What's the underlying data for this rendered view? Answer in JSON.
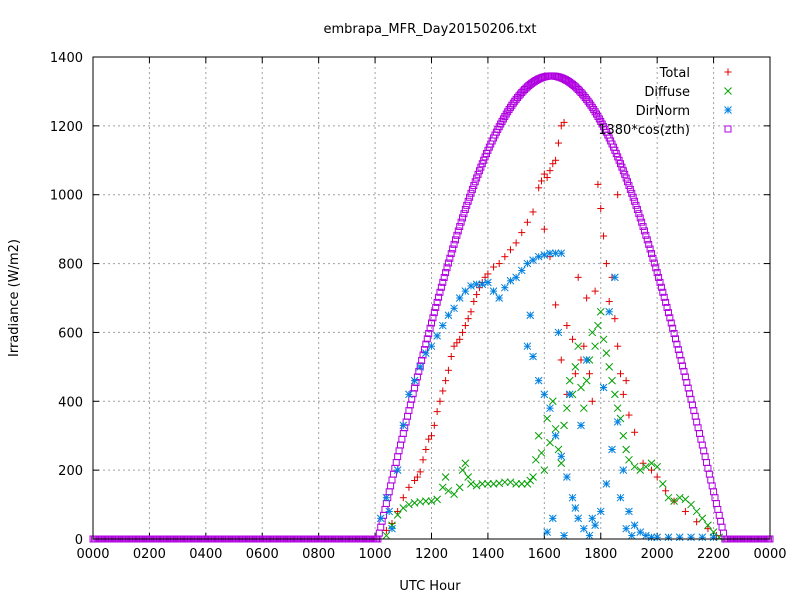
{
  "chart_data": {
    "type": "scatter",
    "title": "embrapa_MFR_Day20150206.txt",
    "xlabel": "UTC Hour",
    "ylabel": "Irradiance (W/m2)",
    "xlim": [
      0,
      24
    ],
    "ylim": [
      0,
      1400
    ],
    "grid": true,
    "legend_position": "top-right",
    "x_tick_labels": [
      "0000",
      "0200",
      "0400",
      "0600",
      "0800",
      "1000",
      "1200",
      "1400",
      "1600",
      "1800",
      "2000",
      "2200",
      "0000"
    ],
    "y_ticks": [
      0,
      200,
      400,
      600,
      800,
      1000,
      1200,
      1400
    ],
    "series": [
      {
        "name": "Total",
        "marker": "plus",
        "color": "#e00000",
        "points": [
          [
            10.4,
            25
          ],
          [
            10.6,
            45
          ],
          [
            10.8,
            80
          ],
          [
            11.0,
            120
          ],
          [
            11.2,
            150
          ],
          [
            11.4,
            170
          ],
          [
            11.5,
            180
          ],
          [
            11.6,
            195
          ],
          [
            11.7,
            230
          ],
          [
            11.8,
            260
          ],
          [
            11.9,
            290
          ],
          [
            12.0,
            300
          ],
          [
            12.1,
            330
          ],
          [
            12.2,
            370
          ],
          [
            12.3,
            400
          ],
          [
            12.4,
            430
          ],
          [
            12.5,
            460
          ],
          [
            12.6,
            490
          ],
          [
            12.7,
            530
          ],
          [
            12.8,
            560
          ],
          [
            12.9,
            570
          ],
          [
            13.0,
            580
          ],
          [
            13.1,
            600
          ],
          [
            13.2,
            620
          ],
          [
            13.3,
            640
          ],
          [
            13.4,
            660
          ],
          [
            13.5,
            690
          ],
          [
            13.6,
            710
          ],
          [
            13.7,
            730
          ],
          [
            13.8,
            745
          ],
          [
            13.9,
            760
          ],
          [
            14.0,
            770
          ],
          [
            14.2,
            790
          ],
          [
            14.4,
            800
          ],
          [
            14.6,
            820
          ],
          [
            14.8,
            840
          ],
          [
            15.0,
            860
          ],
          [
            15.2,
            890
          ],
          [
            15.4,
            920
          ],
          [
            15.6,
            950
          ],
          [
            15.8,
            1020
          ],
          [
            15.9,
            1040
          ],
          [
            16.0,
            1060
          ],
          [
            16.1,
            1050
          ],
          [
            16.2,
            1070
          ],
          [
            16.3,
            1090
          ],
          [
            16.4,
            1100
          ],
          [
            16.5,
            1150
          ],
          [
            16.6,
            1200
          ],
          [
            16.7,
            1210
          ],
          [
            16.0,
            900
          ],
          [
            16.2,
            820
          ],
          [
            16.4,
            680
          ],
          [
            16.6,
            520
          ],
          [
            16.8,
            620
          ],
          [
            17.0,
            580
          ],
          [
            17.2,
            760
          ],
          [
            17.4,
            560
          ],
          [
            17.5,
            700
          ],
          [
            17.6,
            480
          ],
          [
            17.7,
            400
          ],
          [
            17.8,
            720
          ],
          [
            17.9,
            1030
          ],
          [
            18.0,
            960
          ],
          [
            18.1,
            880
          ],
          [
            18.2,
            800
          ],
          [
            18.3,
            690
          ],
          [
            18.4,
            760
          ],
          [
            18.5,
            640
          ],
          [
            18.6,
            560
          ],
          [
            18.7,
            480
          ],
          [
            18.8,
            420
          ],
          [
            19.0,
            360
          ],
          [
            19.2,
            310
          ],
          [
            19.5,
            220
          ],
          [
            19.8,
            200
          ],
          [
            20.0,
            180
          ],
          [
            20.3,
            140
          ],
          [
            20.6,
            110
          ],
          [
            21.0,
            80
          ],
          [
            21.4,
            50
          ],
          [
            21.8,
            30
          ],
          [
            22.1,
            10
          ],
          [
            16.8,
            420
          ],
          [
            17.1,
            480
          ],
          [
            17.3,
            520
          ],
          [
            18.6,
            1000
          ],
          [
            18.9,
            460
          ]
        ]
      },
      {
        "name": "Diffuse",
        "marker": "cross",
        "color": "#00a000",
        "points": [
          [
            10.4,
            10
          ],
          [
            10.6,
            40
          ],
          [
            10.8,
            70
          ],
          [
            11.0,
            90
          ],
          [
            11.2,
            100
          ],
          [
            11.4,
            105
          ],
          [
            11.6,
            108
          ],
          [
            11.8,
            110
          ],
          [
            12.0,
            110
          ],
          [
            12.2,
            115
          ],
          [
            12.4,
            150
          ],
          [
            12.5,
            180
          ],
          [
            12.6,
            140
          ],
          [
            12.8,
            130
          ],
          [
            13.0,
            150
          ],
          [
            13.1,
            200
          ],
          [
            13.2,
            220
          ],
          [
            13.3,
            180
          ],
          [
            13.4,
            160
          ],
          [
            13.6,
            155
          ],
          [
            13.8,
            160
          ],
          [
            14.0,
            160
          ],
          [
            14.2,
            160
          ],
          [
            14.4,
            162
          ],
          [
            14.6,
            165
          ],
          [
            14.8,
            165
          ],
          [
            15.0,
            160
          ],
          [
            15.2,
            160
          ],
          [
            15.4,
            160
          ],
          [
            15.5,
            170
          ],
          [
            15.6,
            180
          ],
          [
            15.7,
            230
          ],
          [
            15.8,
            300
          ],
          [
            15.9,
            250
          ],
          [
            16.0,
            200
          ],
          [
            16.1,
            350
          ],
          [
            16.2,
            280
          ],
          [
            16.3,
            400
          ],
          [
            16.4,
            320
          ],
          [
            16.5,
            260
          ],
          [
            16.6,
            220
          ],
          [
            16.7,
            330
          ],
          [
            16.8,
            380
          ],
          [
            16.9,
            460
          ],
          [
            17.0,
            420
          ],
          [
            17.1,
            500
          ],
          [
            17.2,
            560
          ],
          [
            17.3,
            440
          ],
          [
            17.4,
            380
          ],
          [
            17.5,
            460
          ],
          [
            17.6,
            520
          ],
          [
            17.7,
            600
          ],
          [
            17.8,
            560
          ],
          [
            17.9,
            620
          ],
          [
            18.0,
            660
          ],
          [
            18.1,
            580
          ],
          [
            18.2,
            540
          ],
          [
            18.3,
            500
          ],
          [
            18.4,
            460
          ],
          [
            18.5,
            420
          ],
          [
            18.6,
            380
          ],
          [
            18.7,
            350
          ],
          [
            18.8,
            300
          ],
          [
            18.9,
            260
          ],
          [
            19.0,
            230
          ],
          [
            19.2,
            210
          ],
          [
            19.4,
            200
          ],
          [
            19.6,
            210
          ],
          [
            19.8,
            220
          ],
          [
            20.0,
            210
          ],
          [
            20.2,
            160
          ],
          [
            20.4,
            120
          ],
          [
            20.6,
            110
          ],
          [
            20.8,
            120
          ],
          [
            21.0,
            115
          ],
          [
            21.2,
            100
          ],
          [
            21.4,
            80
          ],
          [
            21.6,
            60
          ],
          [
            21.8,
            40
          ],
          [
            22.0,
            20
          ],
          [
            22.2,
            5
          ]
        ]
      },
      {
        "name": "DirNorm",
        "marker": "star",
        "color": "#0080e0",
        "points": [
          [
            10.2,
            60
          ],
          [
            10.4,
            120
          ],
          [
            10.5,
            80
          ],
          [
            10.6,
            30
          ],
          [
            10.8,
            200
          ],
          [
            11.0,
            330
          ],
          [
            11.2,
            420
          ],
          [
            11.4,
            460
          ],
          [
            11.6,
            500
          ],
          [
            11.8,
            540
          ],
          [
            12.0,
            560
          ],
          [
            12.2,
            590
          ],
          [
            12.4,
            620
          ],
          [
            12.6,
            650
          ],
          [
            12.8,
            670
          ],
          [
            13.0,
            700
          ],
          [
            13.2,
            720
          ],
          [
            13.4,
            735
          ],
          [
            13.6,
            740
          ],
          [
            13.8,
            740
          ],
          [
            14.0,
            745
          ],
          [
            14.2,
            720
          ],
          [
            14.4,
            700
          ],
          [
            14.6,
            730
          ],
          [
            14.8,
            750
          ],
          [
            15.0,
            760
          ],
          [
            15.2,
            780
          ],
          [
            15.4,
            800
          ],
          [
            15.6,
            810
          ],
          [
            15.8,
            820
          ],
          [
            16.0,
            825
          ],
          [
            16.2,
            830
          ],
          [
            16.4,
            830
          ],
          [
            16.6,
            830
          ],
          [
            15.6,
            530
          ],
          [
            15.8,
            460
          ],
          [
            16.0,
            420
          ],
          [
            16.2,
            380
          ],
          [
            16.4,
            300
          ],
          [
            16.6,
            240
          ],
          [
            16.8,
            180
          ],
          [
            17.0,
            120
          ],
          [
            17.2,
            60
          ],
          [
            17.4,
            30
          ],
          [
            17.6,
            10
          ],
          [
            17.8,
            40
          ],
          [
            18.0,
            80
          ],
          [
            18.2,
            160
          ],
          [
            18.4,
            260
          ],
          [
            18.6,
            340
          ],
          [
            18.8,
            200
          ],
          [
            19.0,
            80
          ],
          [
            19.2,
            40
          ],
          [
            19.4,
            20
          ],
          [
            19.6,
            10
          ],
          [
            19.8,
            5
          ],
          [
            20.0,
            5
          ],
          [
            20.4,
            5
          ],
          [
            20.8,
            5
          ],
          [
            21.2,
            5
          ],
          [
            21.6,
            5
          ],
          [
            22.0,
            5
          ],
          [
            15.4,
            560
          ],
          [
            15.5,
            650
          ],
          [
            16.5,
            600
          ],
          [
            16.9,
            420
          ],
          [
            17.3,
            330
          ],
          [
            17.5,
            520
          ],
          [
            18.1,
            440
          ],
          [
            18.3,
            660
          ],
          [
            18.5,
            760
          ],
          [
            18.7,
            120
          ],
          [
            16.1,
            20
          ],
          [
            16.3,
            60
          ],
          [
            16.7,
            10
          ],
          [
            17.1,
            90
          ],
          [
            17.7,
            60
          ],
          [
            18.9,
            30
          ],
          [
            19.1,
            10
          ]
        ]
      },
      {
        "name": "1380*cos(zth)",
        "marker": "square",
        "color": "#b000e0",
        "curve": {
          "amplitude": 1345,
          "sunrise": 10.1,
          "sunset": 22.4,
          "step_hours": 0.05
        }
      }
    ]
  }
}
